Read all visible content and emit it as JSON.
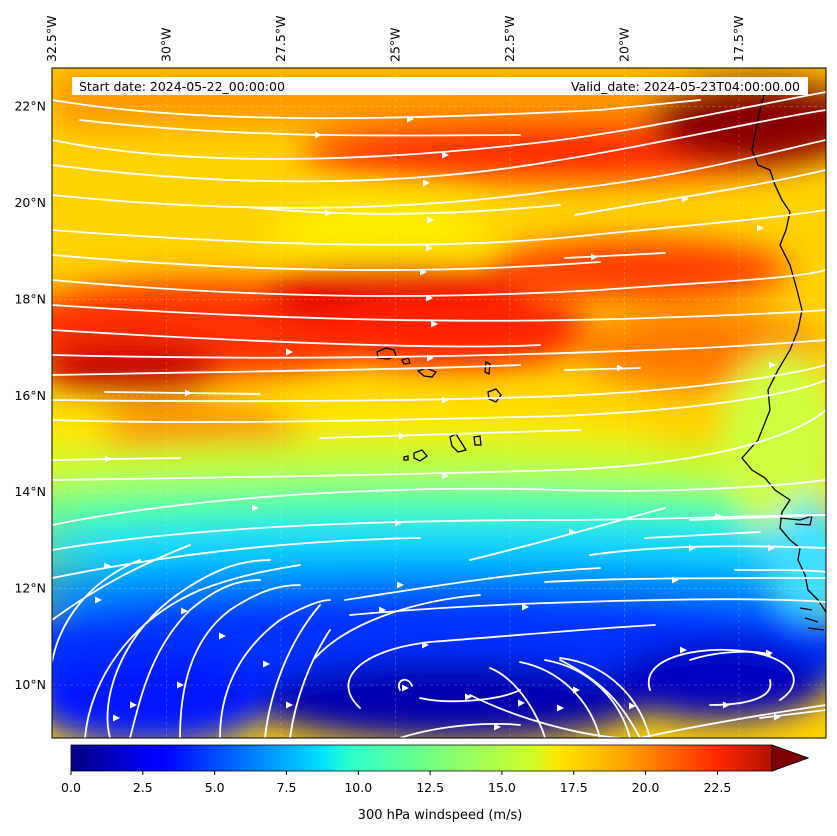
{
  "map": {
    "start_date": "Start date: 2024-05-22_00:00:00",
    "valid_date": "Valid_date: 2024-05-23T04:00:00.00",
    "extent": {
      "lon_min": -32.5,
      "lon_max": -15.6,
      "lat_min": 8.9,
      "lat_max": 22.8
    },
    "lon_ticks": [
      {
        "value": -32.5,
        "label": "32.5°W"
      },
      {
        "value": -30,
        "label": "30°W"
      },
      {
        "value": -27.5,
        "label": "27.5°W"
      },
      {
        "value": -25,
        "label": "25°W"
      },
      {
        "value": -22.5,
        "label": "22.5°W"
      },
      {
        "value": -20,
        "label": "20°W"
      },
      {
        "value": -17.5,
        "label": "17.5°W"
      }
    ],
    "lat_ticks": [
      {
        "value": 10,
        "label": "10°N"
      },
      {
        "value": 12,
        "label": "12°N"
      },
      {
        "value": 14,
        "label": "14°N"
      },
      {
        "value": 16,
        "label": "16°N"
      },
      {
        "value": 18,
        "label": "18°N"
      },
      {
        "value": 20,
        "label": "20°N"
      },
      {
        "value": 22,
        "label": "22°N"
      }
    ],
    "colormap": "jet",
    "coastline_color": "#000000",
    "streamline_color": "#ffffff"
  },
  "colorbar": {
    "title": "300 hPa windspeed (m/s)",
    "min": 0,
    "max": 25,
    "extend": "max",
    "ticks": [
      "0.0",
      "2.5",
      "5.0",
      "7.5",
      "10.0",
      "12.5",
      "15.0",
      "17.5",
      "20.0",
      "22.5"
    ]
  }
}
